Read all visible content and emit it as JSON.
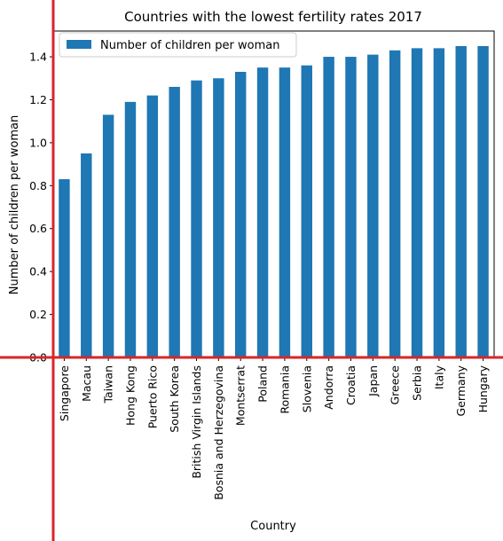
{
  "chart_data": {
    "type": "bar",
    "title": "Countries with the lowest fertility rates 2017",
    "xlabel": "Country",
    "ylabel": "Number of children per woman",
    "legend": {
      "label": "Number of children per woman",
      "placement": "top-left"
    },
    "categories": [
      "Singapore",
      "Macau",
      "Taiwan",
      "Hong Kong",
      "Puerto Rico",
      "South Korea",
      "British Virgin Islands",
      "Bosnia and Herzegovina",
      "Montserrat",
      "Poland",
      "Romania",
      "Slovenia",
      "Andorra",
      "Croatia",
      "Japan",
      "Greece",
      "Serbia",
      "Italy",
      "Germany",
      "Hungary"
    ],
    "series": [
      {
        "name": "Number of children per woman",
        "values": [
          0.83,
          0.95,
          1.13,
          1.19,
          1.22,
          1.26,
          1.29,
          1.3,
          1.33,
          1.35,
          1.35,
          1.36,
          1.4,
          1.4,
          1.41,
          1.43,
          1.44,
          1.44,
          1.45,
          1.45
        ]
      }
    ],
    "yticks": [
      "0.0",
      "0.2",
      "0.4",
      "0.6",
      "0.8",
      "1.0",
      "1.2",
      "1.4"
    ],
    "ylim": [
      0,
      1.52
    ],
    "grid": false,
    "colors": {
      "bar": "#1f77b4",
      "axis_overlay": "#d62728"
    }
  }
}
